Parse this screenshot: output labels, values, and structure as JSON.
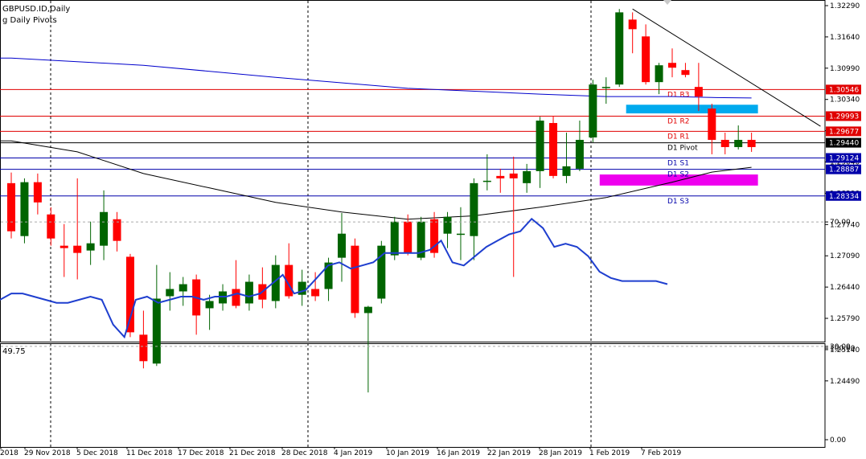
{
  "header": {
    "symbol_label": "GBPUSD.ID,Daily",
    "indicator_label": "g Daily Pivots",
    "rsi_label": "49.75"
  },
  "colors": {
    "bull": "#006400",
    "bear": "#ff0000",
    "ma_fast": "#000000",
    "ma_slow": "#0000cc",
    "pivot_resistance": "#e00000",
    "pivot_support": "#0000aa",
    "pivot_central": "#000000",
    "zone_supply": "#00aaee",
    "zone_demand": "#ee00ee",
    "rsi": "#1f3fcf",
    "grid": "#000000"
  },
  "chart_data": [
    {
      "type": "candlestick",
      "title": "GBPUSD.ID,Daily",
      "ylim": [
        1.2425,
        1.3245
      ],
      "y_ticks": [
        "1.32290",
        "1.31640",
        "1.30990",
        "1.30340",
        "1.29690",
        "1.29040",
        "1.28390",
        "1.27740",
        "1.27090",
        "1.26440",
        "1.25790",
        "1.25140",
        "1.24490"
      ],
      "x_ticks": [
        "2018",
        "29 Nov 2018",
        "5 Dec 2018",
        "11 Dec 2018",
        "17 Dec 2018",
        "21 Dec 2018",
        "28 Dec 2018",
        "4 Jan 2019",
        "10 Jan 2019",
        "16 Jan 2019",
        "22 Jan 2019",
        "28 Jan 2019",
        "1 Feb 2019",
        "7 Feb 2019"
      ],
      "period_separators": [
        "29 Nov 2018",
        "28 Dec 2018",
        "1 Feb 2019"
      ],
      "candles": [
        {
          "o": 1.286,
          "h": 1.2882,
          "l": 1.2745,
          "c": 1.276
        },
        {
          "o": 1.275,
          "h": 1.287,
          "l": 1.2735,
          "c": 1.2862
        },
        {
          "o": 1.2862,
          "h": 1.288,
          "l": 1.2795,
          "c": 1.282
        },
        {
          "o": 1.2795,
          "h": 1.281,
          "l": 1.273,
          "c": 1.2745
        },
        {
          "o": 1.273,
          "h": 1.2775,
          "l": 1.2665,
          "c": 1.2725
        },
        {
          "o": 1.273,
          "h": 1.287,
          "l": 1.266,
          "c": 1.2715
        },
        {
          "o": 1.272,
          "h": 1.278,
          "l": 1.269,
          "c": 1.2735
        },
        {
          "o": 1.273,
          "h": 1.2845,
          "l": 1.27,
          "c": 1.28
        },
        {
          "o": 1.2785,
          "h": 1.28,
          "l": 1.2718,
          "c": 1.274
        },
        {
          "o": 1.2707,
          "h": 1.2713,
          "l": 1.254,
          "c": 1.255
        },
        {
          "o": 1.2545,
          "h": 1.2595,
          "l": 1.2475,
          "c": 1.249
        },
        {
          "o": 1.2485,
          "h": 1.269,
          "l": 1.248,
          "c": 1.262
        },
        {
          "o": 1.2625,
          "h": 1.2675,
          "l": 1.2595,
          "c": 1.264
        },
        {
          "o": 1.2635,
          "h": 1.2665,
          "l": 1.2605,
          "c": 1.265
        },
        {
          "o": 1.266,
          "h": 1.267,
          "l": 1.2545,
          "c": 1.2585
        },
        {
          "o": 1.26,
          "h": 1.2628,
          "l": 1.2555,
          "c": 1.2615
        },
        {
          "o": 1.261,
          "h": 1.265,
          "l": 1.2595,
          "c": 1.2635
        },
        {
          "o": 1.264,
          "h": 1.27,
          "l": 1.26,
          "c": 1.2605
        },
        {
          "o": 1.261,
          "h": 1.267,
          "l": 1.2595,
          "c": 1.2655
        },
        {
          "o": 1.265,
          "h": 1.2685,
          "l": 1.26,
          "c": 1.2618
        },
        {
          "o": 1.2615,
          "h": 1.271,
          "l": 1.26,
          "c": 1.269
        },
        {
          "o": 1.269,
          "h": 1.2735,
          "l": 1.262,
          "c": 1.2625
        },
        {
          "o": 1.2628,
          "h": 1.268,
          "l": 1.2605,
          "c": 1.2655
        },
        {
          "o": 1.264,
          "h": 1.2675,
          "l": 1.2615,
          "c": 1.2625
        },
        {
          "o": 1.264,
          "h": 1.2705,
          "l": 1.2615,
          "c": 1.2695
        },
        {
          "o": 1.2705,
          "h": 1.2798,
          "l": 1.2655,
          "c": 1.2755
        },
        {
          "o": 1.273,
          "h": 1.2745,
          "l": 1.258,
          "c": 1.259
        },
        {
          "o": 1.259,
          "h": 1.2605,
          "l": 1.2425,
          "c": 1.2603
        },
        {
          "o": 1.262,
          "h": 1.274,
          "l": 1.261,
          "c": 1.273
        },
        {
          "o": 1.271,
          "h": 1.279,
          "l": 1.27,
          "c": 1.278
        },
        {
          "o": 1.278,
          "h": 1.2795,
          "l": 1.271,
          "c": 1.2715
        },
        {
          "o": 1.2705,
          "h": 1.279,
          "l": 1.27,
          "c": 1.278
        },
        {
          "o": 1.2785,
          "h": 1.28,
          "l": 1.2705,
          "c": 1.2715
        },
        {
          "o": 1.2755,
          "h": 1.28,
          "l": 1.2725,
          "c": 1.279
        },
        {
          "o": 1.2755,
          "h": 1.281,
          "l": 1.27,
          "c": 1.2755
        },
        {
          "o": 1.275,
          "h": 1.287,
          "l": 1.27,
          "c": 1.286
        },
        {
          "o": 1.2865,
          "h": 1.292,
          "l": 1.2845,
          "c": 1.2865
        },
        {
          "o": 1.2875,
          "h": 1.289,
          "l": 1.284,
          "c": 1.287
        },
        {
          "o": 1.288,
          "h": 1.2915,
          "l": 1.2665,
          "c": 1.287
        },
        {
          "o": 1.286,
          "h": 1.29,
          "l": 1.284,
          "c": 1.2885
        },
        {
          "o": 1.2885,
          "h": 1.2998,
          "l": 1.285,
          "c": 1.299
        },
        {
          "o": 1.2985,
          "h": 1.3,
          "l": 1.287,
          "c": 1.2875
        },
        {
          "o": 1.2875,
          "h": 1.2965,
          "l": 1.286,
          "c": 1.2895
        },
        {
          "o": 1.289,
          "h": 1.299,
          "l": 1.2885,
          "c": 1.295
        },
        {
          "o": 1.2955,
          "h": 1.3075,
          "l": 1.2945,
          "c": 1.3065
        },
        {
          "o": 1.306,
          "h": 1.308,
          "l": 1.3025,
          "c": 1.306
        },
        {
          "o": 1.3065,
          "h": 1.3222,
          "l": 1.306,
          "c": 1.3215
        },
        {
          "o": 1.32,
          "h": 1.3215,
          "l": 1.313,
          "c": 1.318
        },
        {
          "o": 1.3165,
          "h": 1.319,
          "l": 1.3065,
          "c": 1.307
        },
        {
          "o": 1.307,
          "h": 1.311,
          "l": 1.3045,
          "c": 1.3105
        },
        {
          "o": 1.311,
          "h": 1.314,
          "l": 1.308,
          "c": 1.31
        },
        {
          "o": 1.3095,
          "h": 1.311,
          "l": 1.308,
          "c": 1.3085
        },
        {
          "o": 1.306,
          "h": 1.311,
          "l": 1.301,
          "c": 1.304
        },
        {
          "o": 1.3015,
          "h": 1.3025,
          "l": 1.292,
          "c": 1.295
        },
        {
          "o": 1.295,
          "h": 1.2965,
          "l": 1.292,
          "c": 1.2935
        },
        {
          "o": 1.2935,
          "h": 1.298,
          "l": 1.293,
          "c": 1.295
        },
        {
          "o": 1.295,
          "h": 1.2965,
          "l": 1.2925,
          "c": 1.2935
        }
      ],
      "series": [
        {
          "name": "MA fast",
          "x": [
            0,
            5,
            10,
            15,
            20,
            25,
            30,
            35,
            40,
            45,
            50,
            53,
            56
          ],
          "values": [
            1.2948,
            1.2925,
            1.288,
            1.285,
            1.282,
            1.28,
            1.2785,
            1.2792,
            1.281,
            1.283,
            1.2862,
            1.2883,
            1.2893
          ]
        },
        {
          "name": "MA slow",
          "x": [
            0,
            10,
            20,
            30,
            40,
            45,
            50,
            53,
            56
          ],
          "values": [
            1.312,
            1.3105,
            1.308,
            1.3057,
            1.3045,
            1.304,
            1.304,
            1.3038,
            1.3037
          ]
        }
      ],
      "pivot_levels": [
        {
          "label": "D1 R3",
          "value": 1.30546,
          "tag": "1.30546",
          "kind": "resistance"
        },
        {
          "label": "D1 R2",
          "value": 1.29993,
          "tag": "1.29993",
          "kind": "resistance"
        },
        {
          "label": "D1 R1",
          "value": 1.29677,
          "tag": "1.29677",
          "kind": "resistance"
        },
        {
          "label": "D1 Pivot",
          "value": 1.2944,
          "tag": "1.29440",
          "kind": "current"
        },
        {
          "label": "D1 S1",
          "value": 1.29124,
          "tag": "1.29124",
          "kind": "support"
        },
        {
          "label": "D1 S2",
          "value": 1.28887,
          "tag": "1.28887",
          "kind": "support"
        },
        {
          "label": "D1 S3",
          "value": 1.28334,
          "tag": "1.28334",
          "kind": "support"
        }
      ],
      "zones": [
        {
          "kind": "supply",
          "x0": 47,
          "x1": 56,
          "y0": 1.3005,
          "y1": 1.3023
        },
        {
          "kind": "demand",
          "x0": 45,
          "x1": 56,
          "y0": 1.2855,
          "y1": 1.2878
        }
      ],
      "trendline": {
        "x0": 47,
        "y0": 1.3222,
        "x1": 60,
        "y1": 1.2975
      }
    },
    {
      "type": "line",
      "title": "49.75",
      "ylim": [
        0,
        100
      ],
      "y_ticks": [
        "100.00",
        "70.00",
        "30.00",
        "0.00"
      ],
      "levels": [
        70,
        30
      ],
      "values": [
        45,
        47,
        47,
        46,
        45,
        44,
        44,
        45,
        46,
        45,
        37,
        33,
        45,
        46,
        44,
        45,
        46,
        46,
        45,
        46,
        46,
        47,
        46,
        47,
        50,
        53,
        47,
        48,
        52,
        56,
        57,
        55,
        56,
        57,
        60,
        60,
        60,
        60,
        61,
        64,
        57,
        56,
        59,
        62,
        64,
        66,
        67,
        71,
        68,
        62,
        63,
        62,
        59,
        54,
        52,
        51,
        51,
        51,
        51,
        50
      ]
    }
  ]
}
